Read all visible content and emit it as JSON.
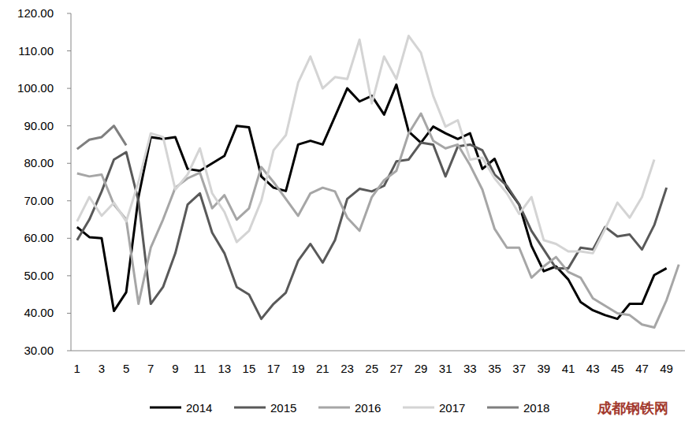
{
  "chart_data": {
    "type": "line",
    "categories": [
      1,
      null,
      3,
      null,
      5,
      null,
      7,
      null,
      9,
      null,
      11,
      null,
      13,
      null,
      15,
      null,
      17,
      null,
      19,
      null,
      21,
      null,
      23,
      null,
      25,
      null,
      27,
      null,
      29,
      null,
      31,
      null,
      33,
      null,
      35,
      null,
      37,
      null,
      39,
      null,
      41,
      null,
      43,
      null,
      45,
      null,
      47,
      null,
      49,
      null
    ],
    "series": [
      {
        "name": "2014",
        "color": "#000000",
        "values": [
          63,
          60.3,
          60,
          40.6,
          45.6,
          71,
          87,
          86.5,
          87,
          78.5,
          78,
          80,
          82,
          90,
          89.6,
          76.5,
          73.5,
          72.6,
          85,
          86,
          85,
          92.5,
          100,
          96.5,
          98,
          93,
          101,
          88.5,
          85.5,
          89.8,
          88,
          86.5,
          88,
          78.5,
          81.2,
          73.5,
          69,
          58,
          51.2,
          52.5,
          49,
          43,
          40.8,
          39.5,
          38.5,
          42.5,
          42.5,
          50.2,
          52,
          null
        ]
      },
      {
        "name": "2015",
        "color": "#595959",
        "values": [
          59.5,
          65,
          72.5,
          81,
          83,
          70,
          42.5,
          47,
          56,
          69,
          72,
          61.5,
          56,
          47,
          45,
          38.5,
          42.5,
          45.5,
          54,
          58.5,
          53.5,
          59.5,
          70.5,
          73.2,
          72.5,
          74,
          80.5,
          81,
          85.5,
          85,
          76.5,
          84.5,
          85,
          83.5,
          77,
          74,
          69,
          62,
          57,
          52,
          52,
          57.5,
          57,
          63,
          60.5,
          61,
          57,
          63.5,
          73.5,
          null
        ]
      },
      {
        "name": "2016",
        "color": "#a6a6a6",
        "values": [
          77.3,
          76.5,
          77,
          69,
          65,
          42.5,
          57.5,
          65,
          73.5,
          76,
          77.5,
          68,
          71.5,
          65,
          68,
          79,
          75,
          70.5,
          66,
          72,
          73.5,
          72.5,
          65.5,
          62,
          71,
          75.5,
          78,
          88,
          93.3,
          86,
          84,
          85,
          79.5,
          73,
          62.5,
          57.5,
          57.5,
          49.5,
          52.5,
          55,
          51,
          49.5,
          44,
          42,
          40,
          39.5,
          37,
          36.2,
          43.5,
          53
        ]
      },
      {
        "name": "2017",
        "color": "#d4d4d4",
        "values": [
          64.5,
          71,
          66,
          69.5,
          64.5,
          75,
          88,
          87,
          73,
          77,
          84,
          72,
          67,
          59,
          62,
          70,
          83.5,
          87.5,
          101.5,
          108.5,
          100,
          103,
          102.5,
          113,
          96,
          108.5,
          102.5,
          114,
          109.5,
          98,
          89.8,
          91.5,
          81,
          81.5,
          76,
          72,
          66.5,
          71,
          59.5,
          58.5,
          56.5,
          56.5,
          56,
          62.5,
          69.5,
          65.5,
          71,
          81,
          null,
          null
        ]
      },
      {
        "name": "2018",
        "color": "#7f7f7f",
        "values": [
          83.8,
          86.3,
          87,
          90,
          84.8,
          null,
          null,
          null,
          null,
          null,
          null,
          null,
          null,
          null,
          null,
          null,
          null,
          null,
          null,
          null,
          null,
          null,
          null,
          null,
          null,
          null,
          null,
          null,
          null,
          null,
          null,
          null,
          null,
          null,
          null,
          null,
          null,
          null,
          null,
          null,
          null,
          null,
          null,
          null,
          null,
          null,
          null,
          null,
          null,
          null
        ]
      }
    ],
    "ylim": [
      30,
      120
    ],
    "yticks": [
      {
        "value": 30,
        "label": "30.00"
      },
      {
        "value": 40,
        "label": "40.00"
      },
      {
        "value": 50,
        "label": "50.00"
      },
      {
        "value": 60,
        "label": "60.00"
      },
      {
        "value": 70,
        "label": "70.00"
      },
      {
        "value": 80,
        "label": "80.00"
      },
      {
        "value": 90,
        "label": "90.00"
      },
      {
        "value": 100,
        "label": "100.00"
      },
      {
        "value": 110,
        "label": "110.00"
      },
      {
        "value": 120,
        "label": "120.00"
      }
    ],
    "grid": false,
    "legend": "bottom",
    "watermark": "成都钢铁网"
  }
}
